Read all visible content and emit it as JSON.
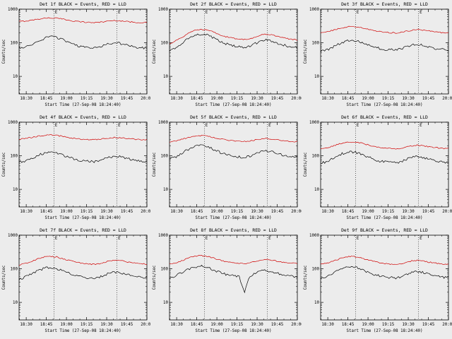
{
  "page": {
    "background": "#ececec"
  },
  "chart_data": {
    "type": "line",
    "shared": {
      "xlabel": "Start Time (27-Sep-08 18:24:40)",
      "ylabel": "Counts/sec",
      "x_range": [
        0,
        95.33
      ],
      "y_range": [
        3,
        1000
      ],
      "y_scale": "log",
      "y_ticks": [
        10,
        100,
        1000
      ],
      "x_ticks": [
        {
          "t": 5.33,
          "label": "18:30"
        },
        {
          "t": 20.33,
          "label": "18:45"
        },
        {
          "t": 35.33,
          "label": "19:00"
        },
        {
          "t": 50.33,
          "label": "19:15"
        },
        {
          "t": 65.33,
          "label": "19:30"
        },
        {
          "t": 80.33,
          "label": "19:45"
        },
        {
          "t": 95.33,
          "label": "20:00"
        }
      ],
      "x_minor_step": 5,
      "events": [
        {
          "t": 26,
          "label": "E"
        },
        {
          "t": 73,
          "label": "E"
        }
      ],
      "legend": [
        {
          "name": "Events",
          "color": "#000000"
        },
        {
          "name": "LLD",
          "color": "#d00000"
        }
      ],
      "colors": {
        "events": "#000000",
        "lld": "#d00000"
      },
      "x_minutes": [
        0,
        4,
        8,
        12,
        16,
        20,
        24,
        28,
        32,
        36,
        40,
        44,
        48,
        52,
        56,
        60,
        64,
        68,
        72,
        76,
        80,
        84,
        88,
        92,
        96
      ]
    },
    "charts": [
      {
        "id": "det-1f",
        "title": "Det 1f BLACK = Events, RED = LLD",
        "events_counts": [
          70,
          75,
          85,
          100,
          120,
          140,
          150,
          145,
          125,
          105,
          90,
          80,
          75,
          72,
          70,
          75,
          85,
          95,
          100,
          95,
          85,
          78,
          72,
          70,
          68
        ],
        "lld_counts": [
          430,
          440,
          460,
          490,
          520,
          545,
          550,
          540,
          510,
          480,
          450,
          430,
          415,
          405,
          400,
          410,
          430,
          450,
          460,
          450,
          430,
          415,
          405,
          400,
          395
        ]
      },
      {
        "id": "det-2f",
        "title": "Det 2f BLACK = Events, RED = LLD",
        "events_counts": [
          60,
          70,
          90,
          120,
          150,
          170,
          180,
          170,
          145,
          120,
          100,
          88,
          80,
          76,
          74,
          80,
          95,
          110,
          120,
          112,
          98,
          88,
          80,
          76,
          72
        ],
        "lld_counts": [
          95,
          110,
          135,
          170,
          210,
          240,
          250,
          240,
          215,
          185,
          160,
          145,
          135,
          128,
          125,
          133,
          150,
          170,
          182,
          172,
          155,
          142,
          132,
          126,
          120
        ]
      },
      {
        "id": "det-3f",
        "title": "Det 3f BLACK = Events, RED = LLD",
        "events_counts": [
          55,
          60,
          70,
          85,
          100,
          115,
          120,
          112,
          98,
          85,
          75,
          68,
          64,
          62,
          60,
          65,
          75,
          85,
          90,
          85,
          77,
          70,
          65,
          62,
          60
        ],
        "lld_counts": [
          200,
          210,
          230,
          255,
          280,
          300,
          305,
          295,
          270,
          248,
          230,
          215,
          205,
          200,
          197,
          205,
          220,
          238,
          248,
          240,
          225,
          213,
          205,
          200,
          196
        ]
      },
      {
        "id": "det-4f",
        "title": "Det 4f BLACK = Events, RED = LLD",
        "events_counts": [
          65,
          70,
          80,
          95,
          110,
          125,
          130,
          122,
          105,
          92,
          82,
          75,
          71,
          68,
          67,
          72,
          82,
          92,
          97,
          92,
          84,
          77,
          72,
          69,
          67
        ],
        "lld_counts": [
          310,
          320,
          340,
          365,
          390,
          410,
          415,
          405,
          380,
          355,
          335,
          320,
          310,
          303,
          300,
          308,
          325,
          342,
          352,
          344,
          328,
          316,
          308,
          302,
          298
        ]
      },
      {
        "id": "det-5f",
        "title": "Det 5f BLACK = Events, RED = LLD",
        "events_counts": [
          80,
          90,
          110,
          140,
          170,
          195,
          200,
          188,
          160,
          135,
          115,
          103,
          96,
          92,
          90,
          98,
          115,
          132,
          140,
          132,
          118,
          106,
          98,
          93,
          90
        ],
        "lld_counts": [
          260,
          275,
          300,
          335,
          370,
          395,
          400,
          388,
          358,
          330,
          305,
          288,
          276,
          268,
          265,
          275,
          295,
          315,
          325,
          316,
          298,
          284,
          274,
          267,
          262
        ]
      },
      {
        "id": "det-6f",
        "title": "Det 6f BLACK = Events, RED = LLD",
        "events_counts": [
          60,
          66,
          78,
          95,
          115,
          128,
          130,
          122,
          105,
          90,
          78,
          70,
          66,
          63,
          62,
          67,
          78,
          90,
          95,
          90,
          81,
          74,
          69,
          65,
          63
        ],
        "lld_counts": [
          160,
          170,
          188,
          212,
          238,
          255,
          258,
          250,
          228,
          208,
          190,
          178,
          170,
          165,
          162,
          169,
          183,
          198,
          206,
          200,
          188,
          178,
          171,
          166,
          162
        ]
      },
      {
        "id": "det-7f",
        "title": "Det 7f BLACK = Events, RED = LLD",
        "events_counts": [
          50,
          55,
          65,
          80,
          95,
          105,
          108,
          102,
          88,
          76,
          66,
          60,
          56,
          54,
          53,
          57,
          66,
          76,
          80,
          76,
          68,
          62,
          58,
          55,
          53
        ],
        "lld_counts": [
          130,
          140,
          158,
          182,
          210,
          230,
          234,
          225,
          202,
          182,
          165,
          152,
          144,
          139,
          136,
          143,
          158,
          174,
          182,
          175,
          162,
          152,
          145,
          140,
          136
        ]
      },
      {
        "id": "det-8f",
        "title": "Det 8f BLACK = Events, RED = LLD",
        "events_counts": [
          55,
          60,
          72,
          88,
          104,
          115,
          118,
          110,
          95,
          82,
          72,
          65,
          61,
          58,
          20,
          62,
          72,
          84,
          88,
          84,
          75,
          68,
          63,
          60,
          58
        ],
        "lld_counts": [
          140,
          150,
          168,
          192,
          220,
          240,
          245,
          235,
          212,
          190,
          172,
          160,
          151,
          145,
          142,
          150,
          165,
          182,
          190,
          183,
          170,
          159,
          151,
          146,
          142
        ]
      },
      {
        "id": "det-9f",
        "title": "Det 9f BLACK = Events, RED = LLD",
        "events_counts": [
          52,
          58,
          68,
          84,
          100,
          110,
          112,
          105,
          90,
          78,
          68,
          62,
          58,
          55,
          54,
          58,
          68,
          78,
          82,
          78,
          70,
          64,
          59,
          56,
          54
        ],
        "lld_counts": [
          135,
          145,
          162,
          185,
          210,
          228,
          232,
          222,
          200,
          180,
          163,
          151,
          143,
          138,
          135,
          142,
          157,
          172,
          180,
          173,
          160,
          150,
          143,
          138,
          134
        ]
      }
    ]
  }
}
